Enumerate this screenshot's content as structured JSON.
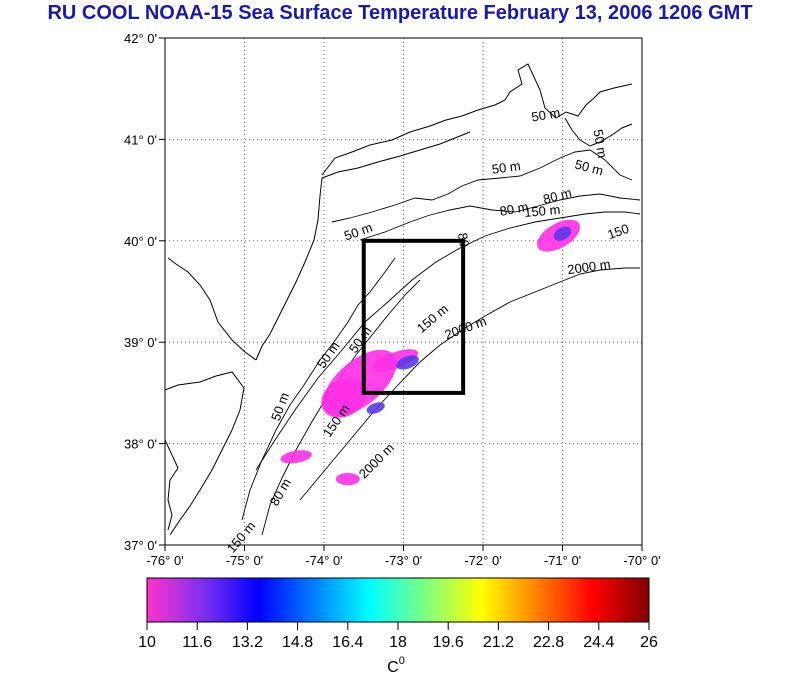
{
  "title": "RU COOL  NOAA-15 Sea Surface Temperature February 13, 2006 1206 GMT",
  "map": {
    "lon_range": [
      -76,
      -70
    ],
    "lat_range": [
      37,
      42
    ],
    "lon_ticks": [
      "-76° 0'",
      "-75° 0'",
      "-74° 0'",
      "-73° 0'",
      "-72° 0'",
      "-71° 0'",
      "-70° 0'"
    ],
    "lat_ticks": [
      "37° 0'",
      "38° 0'",
      "39° 0'",
      "40° 0'",
      "41° 0'",
      "42° 0'"
    ],
    "study_box": {
      "lon_min": -73.5,
      "lon_max": -72.25,
      "lat_min": 38.5,
      "lat_max": 40.0
    },
    "contour_labels": [
      {
        "text": "50 m",
        "lon": -71.2,
        "lat": 41.2,
        "angle": -10
      },
      {
        "text": "50 m",
        "lon": -71.7,
        "lat": 40.68,
        "angle": -8
      },
      {
        "text": "50 m",
        "lon": -70.68,
        "lat": 40.68,
        "angle": 15
      },
      {
        "text": "50 m",
        "lon": -70.58,
        "lat": 40.95,
        "angle": 80
      },
      {
        "text": "80 m",
        "lon": -71.05,
        "lat": 40.4,
        "angle": -15
      },
      {
        "text": "80 m",
        "lon": -71.6,
        "lat": 40.27,
        "angle": -10
      },
      {
        "text": "150 m",
        "lon": -71.25,
        "lat": 40.25,
        "angle": -5
      },
      {
        "text": "150",
        "lon": -70.28,
        "lat": 40.05,
        "angle": -20
      },
      {
        "text": "2000 m",
        "lon": -70.66,
        "lat": 39.7,
        "angle": -8
      },
      {
        "text": "50 m",
        "lon": -73.55,
        "lat": 40.05,
        "angle": -20
      },
      {
        "text": "80",
        "lon": -72.3,
        "lat": 40.0,
        "angle": 80
      },
      {
        "text": "150 m",
        "lon": -72.6,
        "lat": 39.2,
        "angle": -40
      },
      {
        "text": "2000 m",
        "lon": -72.2,
        "lat": 39.1,
        "angle": -20
      },
      {
        "text": "50 m",
        "lon": -73.5,
        "lat": 39.0,
        "angle": -55
      },
      {
        "text": "50 m",
        "lon": -73.9,
        "lat": 38.85,
        "angle": -55
      },
      {
        "text": "50 m",
        "lon": -74.5,
        "lat": 38.35,
        "angle": -70
      },
      {
        "text": "150 m",
        "lon": -73.8,
        "lat": 38.2,
        "angle": -55
      },
      {
        "text": "2000 m",
        "lon": -73.3,
        "lat": 37.8,
        "angle": -45
      },
      {
        "text": "80 m",
        "lon": -74.5,
        "lat": 37.5,
        "angle": -60
      },
      {
        "text": "150 m",
        "lon": -75.0,
        "lat": 37.05,
        "angle": -50
      }
    ],
    "sst_patches": [
      {
        "lon": -71.05,
        "lat": 40.05,
        "rx": 0.3,
        "ry": 0.12,
        "angle": -30,
        "color": "#ff2fe6"
      },
      {
        "lon": -71.0,
        "lat": 40.07,
        "rx": 0.12,
        "ry": 0.06,
        "angle": -30,
        "color": "#5a3ae8"
      },
      {
        "lon": -73.55,
        "lat": 38.6,
        "rx": 0.55,
        "ry": 0.22,
        "angle": -40,
        "color": "#ff2fe6"
      },
      {
        "lon": -73.75,
        "lat": 38.45,
        "rx": 0.3,
        "ry": 0.18,
        "angle": -30,
        "color": "#ff2fe6"
      },
      {
        "lon": -73.1,
        "lat": 38.82,
        "rx": 0.3,
        "ry": 0.08,
        "angle": -20,
        "color": "#ff2fe6"
      },
      {
        "lon": -72.95,
        "lat": 38.8,
        "rx": 0.15,
        "ry": 0.06,
        "angle": -20,
        "color": "#5a3ae8"
      },
      {
        "lon": -73.35,
        "lat": 38.35,
        "rx": 0.12,
        "ry": 0.05,
        "angle": -20,
        "color": "#5a3ae8"
      },
      {
        "lon": -74.35,
        "lat": 37.87,
        "rx": 0.2,
        "ry": 0.06,
        "angle": -10,
        "color": "#ff2fe6"
      },
      {
        "lon": -73.7,
        "lat": 37.65,
        "rx": 0.15,
        "ry": 0.06,
        "angle": 0,
        "color": "#ff2fe6"
      }
    ]
  },
  "colorbar": {
    "ticks": [
      "10",
      "11.6",
      "13.2",
      "14.8",
      "16.4",
      "18",
      "19.6",
      "21.2",
      "22.8",
      "24.4",
      "26"
    ],
    "min": 10,
    "max": 26,
    "stops": [
      "#ff33cc",
      "#8030f0",
      "#0000ff",
      "#0080ff",
      "#00ffff",
      "#80ff80",
      "#ffff00",
      "#ff8000",
      "#ff0000",
      "#800000"
    ],
    "unit_base": "C",
    "unit_sup": "0"
  }
}
